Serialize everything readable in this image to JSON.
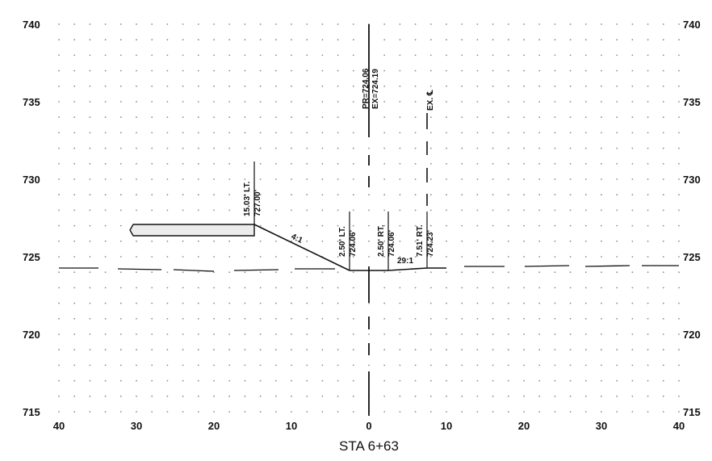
{
  "section": {
    "station_label": "STA 6+63",
    "elevation_ticks_left": [
      "740",
      "735",
      "730",
      "725",
      "720",
      "715"
    ],
    "elevation_ticks_right": [
      "740",
      "735",
      "730",
      "725",
      "720",
      "715"
    ],
    "offset_ticks": [
      "40",
      "30",
      "20",
      "10",
      "0",
      "10",
      "20",
      "30",
      "40"
    ],
    "centerline_label": "PR=724.06\nEX=724.19",
    "existing_centerline_label": "EX. ℄",
    "slope_labels": {
      "left_slope": "4:1",
      "right_slope": "29:1"
    },
    "point_labels": [
      {
        "offset": "15.03' LT.",
        "elevation": "727.00'"
      },
      {
        "offset": "2.50' LT.",
        "elevation": "724.06'"
      },
      {
        "offset": "2.50' RT.",
        "elevation": "724.06'"
      },
      {
        "offset": "7.51' RT.",
        "elevation": "724.23'"
      }
    ]
  },
  "colors": {
    "line": "#111111",
    "grid_dot": "#8a8a8a",
    "fill": "#ececec"
  }
}
